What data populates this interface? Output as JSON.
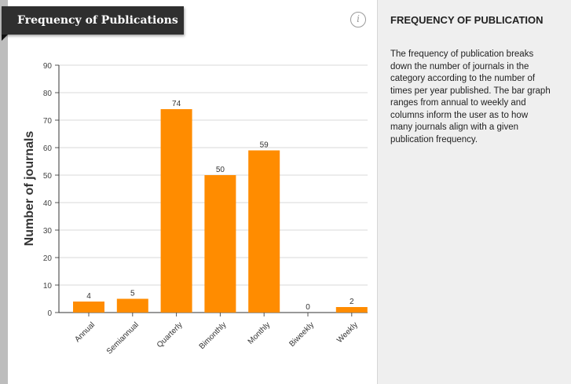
{
  "panel": {
    "title": "Frequency of Publications",
    "info_icon": "i"
  },
  "sidebar": {
    "title": "FREQUENCY OF PUBLICATION",
    "description": "The frequency of publication breaks down the number of journals in the category according to the number of times per year published. The bar graph ranges from annual to weekly and columns inform the user as to how many journals align with a given publication frequency."
  },
  "colors": {
    "bar": "#ff8c00",
    "banner_bg": "#2f2f2f",
    "grid": "#d9d9d9"
  },
  "chart_data": {
    "type": "bar",
    "title": "Frequency of Publications",
    "xlabel": "",
    "ylabel": "Number of journals",
    "categories": [
      "Annual",
      "Semiannual",
      "Quarterly",
      "Bimonthly",
      "Monthly",
      "Biweekly",
      "Weekly"
    ],
    "values": [
      4,
      5,
      74,
      50,
      59,
      0,
      2
    ],
    "ylim": [
      0,
      90
    ],
    "yticks": [
      0,
      10,
      20,
      30,
      40,
      50,
      60,
      70,
      80,
      90
    ],
    "grid": true,
    "legend": "none"
  }
}
